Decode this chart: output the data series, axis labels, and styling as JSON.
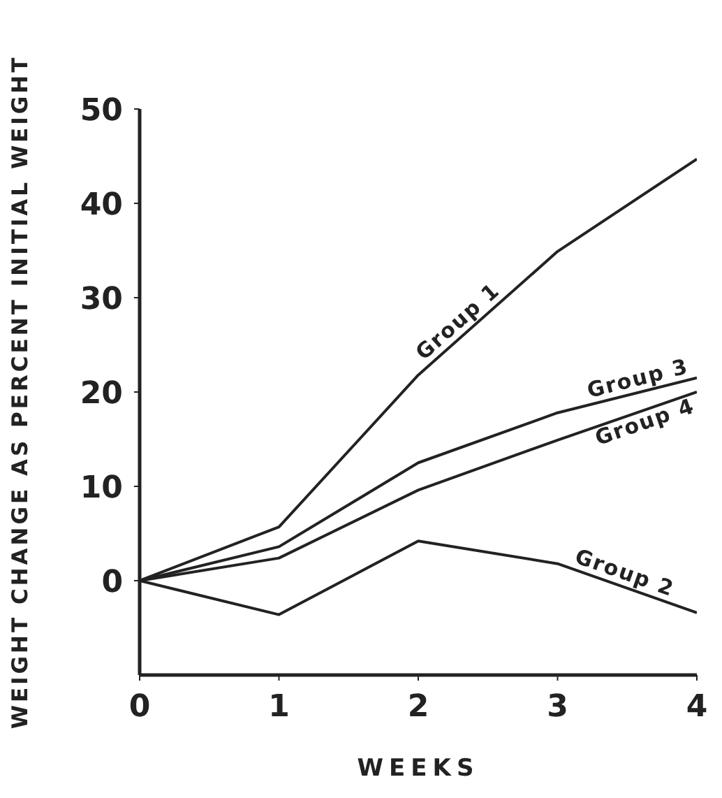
{
  "chart_data": {
    "type": "line",
    "xlabel": "WEEKS",
    "ylabel": "WEIGHT CHANGE AS PERCENT INITIAL WEIGHT",
    "x": [
      0,
      1,
      2,
      3,
      4
    ],
    "series": [
      {
        "name": "Group 1",
        "color": "#222222",
        "values": [
          0,
          5.7,
          21.8,
          34.9,
          44.7
        ]
      },
      {
        "name": "Group 2",
        "color": "#222222",
        "values": [
          0,
          -3.6,
          4.2,
          1.8,
          -3.4
        ]
      },
      {
        "name": "Group 3",
        "color": "#222222",
        "values": [
          0,
          3.6,
          12.5,
          17.8,
          21.5
        ]
      },
      {
        "name": "Group 4",
        "color": "#222222",
        "values": [
          0,
          2.4,
          9.6,
          14.9,
          20
        ]
      }
    ],
    "xlim": [
      0,
      4
    ],
    "xticks": [
      0,
      1,
      2,
      3,
      4
    ],
    "ylim": [
      -10,
      50
    ],
    "yticks": [
      0,
      10,
      20,
      30,
      40,
      50
    ],
    "grid": false,
    "legend": false,
    "marker": "none",
    "line_style": "solid"
  }
}
